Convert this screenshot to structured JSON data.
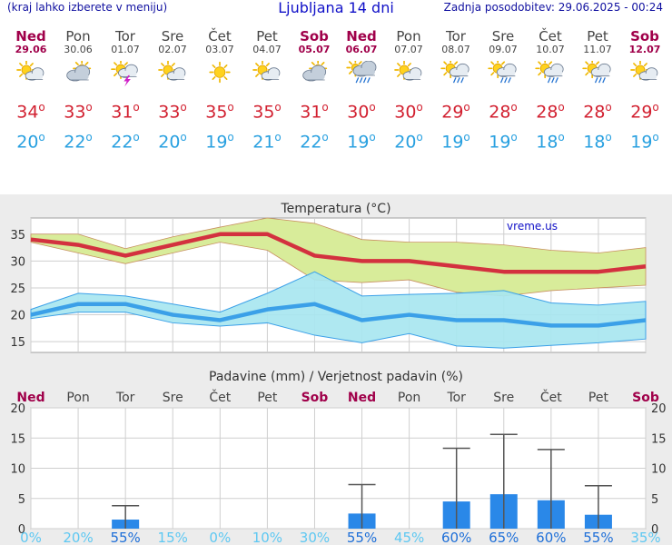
{
  "header": {
    "left_note": "(kraj lahko izberete v meniju)",
    "title": "Ljubljana 14 dni",
    "updated": "Zadnja posodobitev: 29.06.2025 - 00:24"
  },
  "days": [
    {
      "name": "Ned",
      "date": "29.06",
      "weekend": true,
      "icon": "sun-cloud-icon",
      "tmax": "34",
      "tmin": "20"
    },
    {
      "name": "Pon",
      "date": "30.06",
      "weekend": false,
      "icon": "cloud-sun-icon",
      "tmax": "33",
      "tmin": "22"
    },
    {
      "name": "Tor",
      "date": "01.07",
      "weekend": false,
      "icon": "thunderstorm-icon",
      "tmax": "31",
      "tmin": "22"
    },
    {
      "name": "Sre",
      "date": "02.07",
      "weekend": false,
      "icon": "sun-cloud-icon",
      "tmax": "33",
      "tmin": "20"
    },
    {
      "name": "Čet",
      "date": "03.07",
      "weekend": false,
      "icon": "sun-icon",
      "tmax": "35",
      "tmin": "19"
    },
    {
      "name": "Pet",
      "date": "04.07",
      "weekend": false,
      "icon": "sun-cloud-icon",
      "tmax": "35",
      "tmin": "21"
    },
    {
      "name": "Sob",
      "date": "05.07",
      "weekend": true,
      "icon": "cloud-sun-icon",
      "tmax": "31",
      "tmin": "22"
    },
    {
      "name": "Ned",
      "date": "06.07",
      "weekend": true,
      "icon": "rain-cloud-icon",
      "tmax": "30",
      "tmin": "19"
    },
    {
      "name": "Pon",
      "date": "07.07",
      "weekend": false,
      "icon": "sun-cloud-icon",
      "tmax": "30",
      "tmin": "20"
    },
    {
      "name": "Tor",
      "date": "08.07",
      "weekend": false,
      "icon": "sun-rain-icon",
      "tmax": "29",
      "tmin": "19"
    },
    {
      "name": "Sre",
      "date": "09.07",
      "weekend": false,
      "icon": "sun-rain-icon",
      "tmax": "28",
      "tmin": "19"
    },
    {
      "name": "Čet",
      "date": "10.07",
      "weekend": false,
      "icon": "sun-rain-icon",
      "tmax": "28",
      "tmin": "18"
    },
    {
      "name": "Pet",
      "date": "11.07",
      "weekend": false,
      "icon": "sun-rain-icon",
      "tmax": "28",
      "tmin": "18"
    },
    {
      "name": "Sob",
      "date": "12.07",
      "weekend": true,
      "icon": "sun-cloud-icon",
      "tmax": "29",
      "tmin": "19"
    }
  ],
  "colors": {
    "max_line": "#d3313f",
    "min_line": "#3ba0e8",
    "max_band": "#d8ec9a",
    "min_band": "#a8e6f0",
    "bar": "#2a88e8",
    "prob_text": "#40b8ee",
    "weekend": "#a0004a"
  },
  "chart_data": [
    {
      "type": "line",
      "title": "Temperatura (°C)",
      "watermark": "vreme.us",
      "categories": [
        "Ned",
        "Pon",
        "Tor",
        "Sre",
        "Čet",
        "Pet",
        "Sob",
        "Ned",
        "Pon",
        "Tor",
        "Sre",
        "Čet",
        "Pet",
        "Sob"
      ],
      "ylim": [
        13,
        38
      ],
      "yticks": [
        15,
        20,
        25,
        30,
        35
      ],
      "series": [
        {
          "values": [
            34,
            33,
            31,
            33,
            35,
            35,
            31,
            30,
            30,
            29,
            28,
            28,
            28,
            29
          ]
        },
        {
          "values": [
            20,
            22,
            22,
            20,
            19,
            21,
            22,
            19,
            20,
            19,
            19,
            18,
            18,
            19
          ]
        }
      ],
      "max_band_upper": [
        35,
        35,
        32.3,
        34.5,
        36.3,
        38,
        37,
        34,
        33.5,
        33.5,
        33,
        32,
        31.5,
        32.5
      ],
      "max_band_lower": [
        33.5,
        31.5,
        29.5,
        31.5,
        33.5,
        32,
        26.5,
        26,
        26.5,
        24.2,
        23.5,
        24.5,
        25,
        25.5
      ],
      "min_band_upper": [
        21,
        24,
        23.5,
        22,
        20.5,
        24,
        28,
        23.5,
        23.8,
        24,
        24.5,
        22.2,
        21.8,
        22.5
      ],
      "min_band_lower": [
        19.3,
        20.5,
        20.5,
        18.5,
        17.9,
        18.5,
        16.2,
        14.8,
        16.5,
        14.2,
        13.8,
        14.3,
        14.8,
        15.5
      ]
    },
    {
      "type": "bar",
      "title": "Padavine (mm) / Verjetnost padavin (%)",
      "categories": [
        "Ned",
        "Pon",
        "Tor",
        "Sre",
        "Čet",
        "Pet",
        "Sob",
        "Ned",
        "Pon",
        "Tor",
        "Sre",
        "Čet",
        "Pet",
        "Sob"
      ],
      "ylim": [
        0,
        20
      ],
      "yticks": [
        0,
        5,
        10,
        15,
        20
      ],
      "values": [
        0,
        0,
        1.5,
        0,
        0,
        0,
        0,
        2.5,
        0,
        4.5,
        5.7,
        4.7,
        2.3,
        0
      ],
      "error_high": [
        null,
        null,
        3.8,
        null,
        null,
        null,
        null,
        7.3,
        null,
        13.3,
        15.6,
        13.1,
        7.1,
        null
      ],
      "probability": [
        "0%",
        "20%",
        "55%",
        "15%",
        "0%",
        "10%",
        "30%",
        "55%",
        "45%",
        "60%",
        "65%",
        "60%",
        "55%",
        "35%"
      ]
    }
  ]
}
